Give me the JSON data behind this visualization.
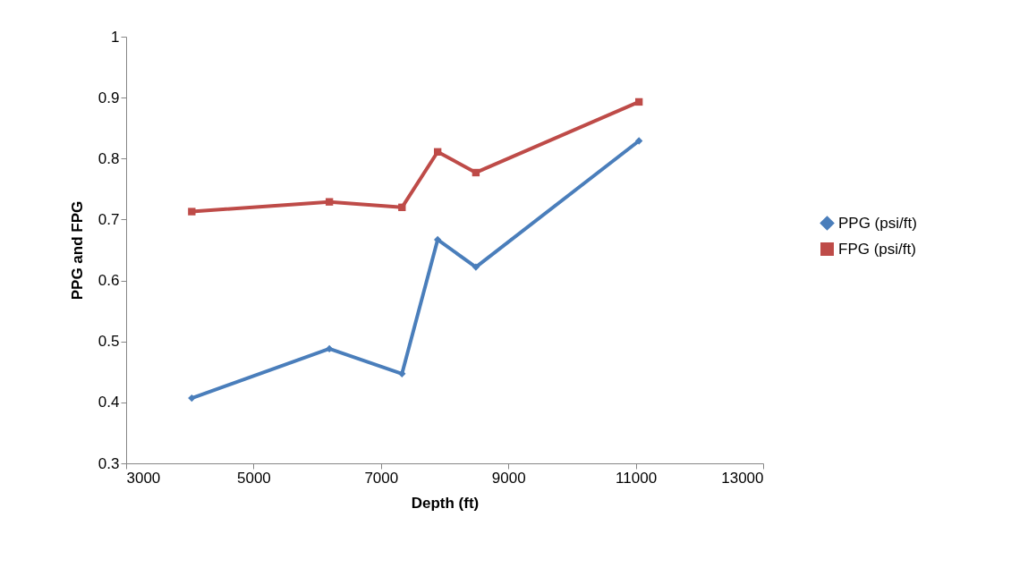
{
  "chart_data": {
    "type": "line",
    "xlabel": "Depth (ft)",
    "ylabel": "PPG and FPG",
    "xlim": [
      3000,
      13000
    ],
    "xticks": [
      3000,
      5000,
      7000,
      9000,
      11000,
      13000
    ],
    "ylim": [
      0.3,
      1
    ],
    "yticks": [
      0.3,
      0.4,
      0.5,
      0.6,
      0.7,
      0.8,
      0.9,
      1
    ],
    "grid": false,
    "legend": "right",
    "series": [
      {
        "name": "PPG (psi/ft)",
        "color": "#4a7ebb",
        "marker": "diamond",
        "x": [
          4030,
          6190,
          7330,
          7890,
          8490,
          11050
        ],
        "values": [
          0.407,
          0.488,
          0.447,
          0.667,
          0.622,
          0.829
        ]
      },
      {
        "name": "FPG (psi/ft)",
        "color": "#be4b48",
        "marker": "square",
        "x": [
          4030,
          6190,
          7330,
          7890,
          8490,
          11050
        ],
        "values": [
          0.713,
          0.729,
          0.72,
          0.811,
          0.777,
          0.893
        ]
      }
    ]
  }
}
